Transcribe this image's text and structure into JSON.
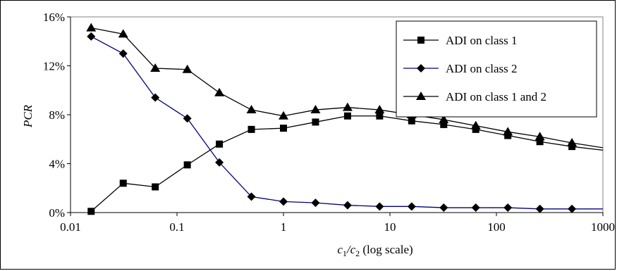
{
  "chart_data": {
    "type": "line",
    "xscale": "log",
    "xlim": [
      0.01,
      1000
    ],
    "ylim": [
      0,
      16
    ],
    "xticks": [
      0.01,
      0.1,
      1,
      10,
      100,
      1000
    ],
    "xtick_labels": [
      "0.01",
      "0.1",
      "1",
      "10",
      "100",
      "1000"
    ],
    "yticks": [
      0,
      4,
      8,
      12,
      16
    ],
    "ytick_labels": [
      "0%",
      "4%",
      "8%",
      "12%",
      "16%"
    ],
    "ylabel": "PCR",
    "xlabel": {
      "c1": "c",
      "sub1": "1",
      "slash": "/c",
      "sub2": "2",
      "rest": " (log scale)"
    },
    "legend_position": "top-right",
    "grid": false,
    "x": [
      0.015625,
      0.03125,
      0.0625,
      0.125,
      0.25,
      0.5,
      1,
      2,
      4,
      8,
      16,
      32,
      64,
      128,
      256,
      512
    ],
    "series": [
      {
        "name": "ADI on class 1",
        "marker": "square",
        "color": "#000000",
        "values": [
          0.1,
          2.4,
          2.1,
          3.9,
          5.6,
          6.8,
          6.9,
          7.4,
          7.9,
          7.9,
          7.5,
          7.2,
          6.8,
          6.3,
          5.8,
          5.4
        ],
        "line_end_value": 5.1
      },
      {
        "name": "ADI on class 2",
        "marker": "diamond",
        "color": "#000080",
        "values": [
          14.4,
          13.0,
          9.4,
          7.7,
          4.1,
          1.3,
          0.9,
          0.8,
          0.6,
          0.5,
          0.5,
          0.4,
          0.4,
          0.4,
          0.3,
          0.3
        ],
        "line_end_value": 0.3
      },
      {
        "name": "ADI on class 1 and 2",
        "marker": "triangle",
        "color": "#000000",
        "values": [
          15.1,
          14.6,
          11.8,
          11.7,
          9.8,
          8.4,
          7.9,
          8.4,
          8.6,
          8.4,
          8.0,
          7.6,
          7.1,
          6.6,
          6.2,
          5.7
        ],
        "line_end_value": 5.3
      }
    ]
  }
}
